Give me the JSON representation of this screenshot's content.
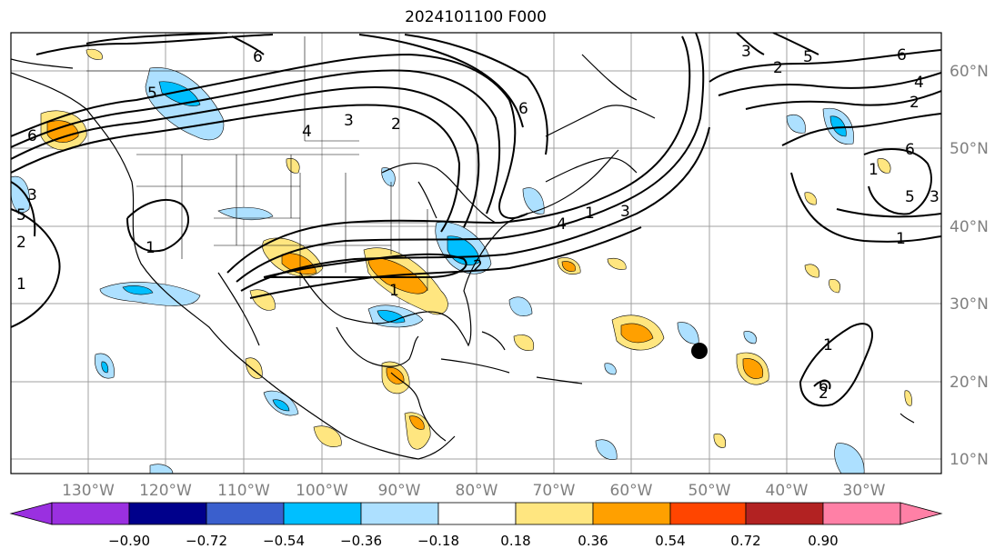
{
  "title": "2024101100 F000",
  "axes": {
    "lon_labels": [
      "130°W",
      "120°W",
      "110°W",
      "100°W",
      "90°W",
      "80°W",
      "70°W",
      "60°W",
      "50°W",
      "40°W",
      "30°W"
    ],
    "lat_labels": [
      "60°N",
      "50°N",
      "40°N",
      "30°N",
      "20°N",
      "10°N"
    ],
    "label_color": "#808080",
    "grid_color": "#a0a0a0"
  },
  "colorbar": {
    "ticks": [
      "−0.90",
      "−0.72",
      "−0.54",
      "−0.36",
      "−0.18",
      "0.18",
      "0.36",
      "0.54",
      "0.72",
      "0.90"
    ],
    "colors": [
      "#9a30e0",
      "#00008b",
      "#3a5fcd",
      "#00bfff",
      "#ade0ff",
      "#ffffff",
      "#ffe680",
      "#ffa000",
      "#ff4500",
      "#b22222",
      "#ff80a6"
    ]
  },
  "contour_labels": [
    "6",
    "5",
    "4",
    "3",
    "2",
    "1",
    "6",
    "5",
    "3",
    "2",
    "1",
    "6",
    "4",
    "3",
    "2",
    "1",
    "6",
    "5",
    "3",
    "2",
    "1",
    "6",
    "2",
    "4",
    "1",
    "2",
    "5",
    "1",
    "3",
    "1",
    "6",
    "2",
    "3"
  ],
  "marker": {
    "type": "storm-center-dot",
    "color": "#000000"
  }
}
